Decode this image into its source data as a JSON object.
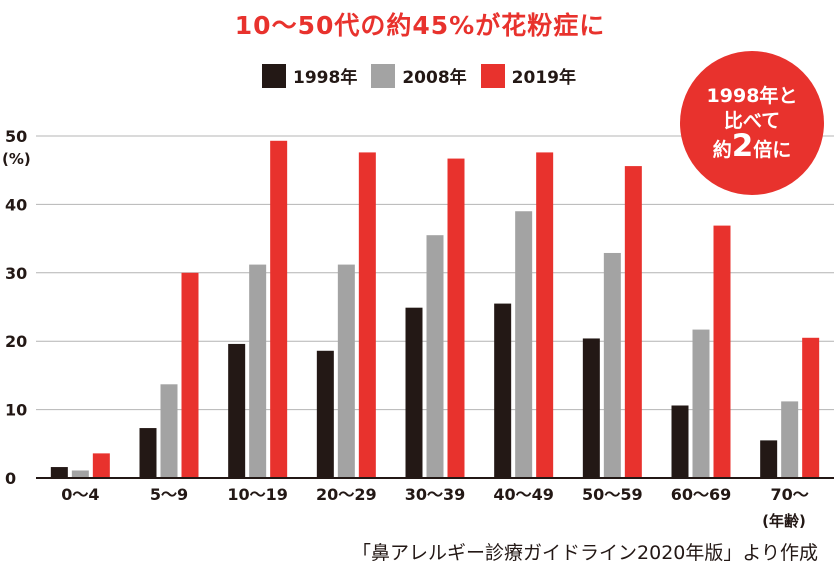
{
  "title": "10〜50代の約45%が花粉症に",
  "badge": {
    "line1": "1998年と",
    "line2": "比べて",
    "line3_pre": "約",
    "line3_num": "2",
    "line3_post": "倍に"
  },
  "source": "「鼻アレルギー診療ガイドライン2020年版」より作成",
  "colors": {
    "accent": "#e8322d",
    "s1998": "#231815",
    "s2008": "#a3a3a3",
    "s2019": "#e8322d",
    "grid": "#b4b4b4",
    "axis": "#231815"
  },
  "chart_data": {
    "type": "bar",
    "title": "10〜50代の約45%が花粉症に",
    "ylabel_unit": "(%)",
    "xlabel_sub": "(年齢)",
    "ylim": [
      0,
      50
    ],
    "yticks": [
      0,
      10,
      20,
      30,
      40,
      50
    ],
    "grid": true,
    "legend_position": "top-center",
    "categories": [
      "0〜4",
      "5〜9",
      "10〜19",
      "20〜29",
      "30〜39",
      "40〜49",
      "50〜59",
      "60〜69",
      "70〜"
    ],
    "series": [
      {
        "name": "1998年",
        "color": "#231815",
        "values": [
          1.6,
          7.3,
          19.6,
          18.6,
          24.9,
          25.5,
          20.4,
          10.6,
          5.5
        ]
      },
      {
        "name": "2008年",
        "color": "#a3a3a3",
        "values": [
          1.1,
          13.7,
          31.2,
          31.2,
          35.5,
          39.0,
          32.9,
          21.7,
          11.2
        ]
      },
      {
        "name": "2019年",
        "color": "#e8322d",
        "values": [
          3.6,
          30.0,
          49.3,
          47.6,
          46.7,
          47.6,
          45.6,
          36.9,
          20.5
        ]
      }
    ]
  }
}
